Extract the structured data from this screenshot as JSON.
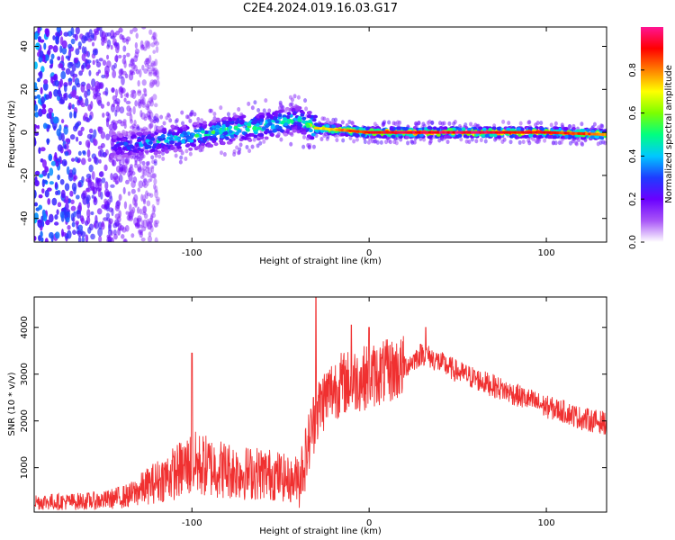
{
  "title": "C2E4.2024.019.16.03.G17",
  "chart_data": [
    {
      "type": "heatmap",
      "xlabel": "Height of straight line (km)",
      "ylabel": "Frequency (Hz)",
      "xlim": [
        -189,
        134
      ],
      "ylim": [
        -51,
        49
      ],
      "xticks": [
        -100,
        0,
        100
      ],
      "yticks": [
        -40,
        -20,
        0,
        20,
        40
      ],
      "colorbar": {
        "label": "Normalized spectral amplitude",
        "range": [
          0,
          1
        ],
        "ticks": [
          "0.0",
          "0.2",
          "0.4",
          "0.6",
          "0.8"
        ],
        "colors": [
          "#ffffff",
          "#a855f7",
          "#6a00ff",
          "#1e3cff",
          "#00c8ff",
          "#00ff80",
          "#7cff00",
          "#ffff00",
          "#ff8000",
          "#ff0000",
          "#ff1493"
        ]
      },
      "ridge": [
        {
          "x": -140,
          "f": -6,
          "amp": 0.35
        },
        {
          "x": -120,
          "f": -4,
          "amp": 0.45
        },
        {
          "x": -100,
          "f": -2,
          "amp": 0.5
        },
        {
          "x": -80,
          "f": 1,
          "amp": 0.55
        },
        {
          "x": -60,
          "f": 3,
          "amp": 0.55
        },
        {
          "x": -40,
          "f": 6,
          "amp": 0.5
        },
        {
          "x": -30,
          "f": 2,
          "amp": 0.7
        },
        {
          "x": -15,
          "f": 1,
          "amp": 0.8
        },
        {
          "x": 0,
          "f": 0,
          "amp": 0.9
        },
        {
          "x": 50,
          "f": 0,
          "amp": 0.95
        },
        {
          "x": 100,
          "f": 0,
          "amp": 0.9
        },
        {
          "x": 134,
          "f": -1,
          "amp": 0.8
        }
      ]
    },
    {
      "type": "line",
      "xlabel": "Height of straight line (km)",
      "ylabel": "SNR (10 * v/v)",
      "xlim": [
        -189,
        134
      ],
      "ylim": [
        50,
        4650
      ],
      "xticks": [
        -100,
        0,
        100
      ],
      "yticks": [
        1000,
        2000,
        3000,
        4000
      ],
      "color": "#f03030",
      "envelope": {
        "x": [
          -189,
          -170,
          -150,
          -135,
          -125,
          -110,
          -100,
          -90,
          -80,
          -70,
          -60,
          -50,
          -42,
          -36,
          -32,
          -28,
          -25,
          -20,
          -15,
          -10,
          -5,
          0,
          10,
          20,
          30,
          40,
          50,
          60,
          70,
          80,
          90,
          100,
          110,
          120,
          134
        ],
        "y": [
          200,
          200,
          220,
          300,
          450,
          650,
          800,
          750,
          700,
          650,
          650,
          600,
          500,
          1200,
          1900,
          2300,
          2500,
          2700,
          2800,
          2850,
          2900,
          2950,
          3050,
          3150,
          3450,
          3250,
          3050,
          2900,
          2750,
          2600,
          2450,
          2300,
          2200,
          2050,
          1950
        ]
      },
      "spikes": [
        {
          "x": -100,
          "y": 3450
        },
        {
          "x": -30,
          "y": 4650
        },
        {
          "x": -10,
          "y": 4050
        },
        {
          "x": 0,
          "y": 4000
        },
        {
          "x": 32,
          "y": 4000
        }
      ]
    }
  ]
}
